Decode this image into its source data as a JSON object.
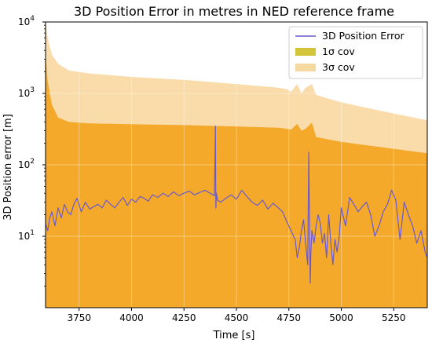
{
  "chart_data": {
    "type": "area",
    "title": "3D Position Error in metres in NED reference frame",
    "xlabel": "Time [s]",
    "ylabel": "3D Position error [m]",
    "xlim": [
      3590,
      5410
    ],
    "ylim": [
      1,
      10000
    ],
    "yscale": "log",
    "grid": true,
    "legend_position": "top-right",
    "x_ticks": [
      3750,
      4000,
      4250,
      4500,
      4750,
      5000,
      5250
    ],
    "x_tick_labels": [
      "3750",
      "4000",
      "4250",
      "4500",
      "4750",
      "5000",
      "5250"
    ],
    "y_ticks": [
      10,
      100,
      1000,
      10000
    ],
    "y_tick_labels": [
      [
        "10",
        "1"
      ],
      [
        "10",
        "2"
      ],
      [
        "10",
        "3"
      ],
      [
        "10",
        "4"
      ]
    ],
    "legend": [
      {
        "label": "3D Position Error",
        "kind": "line",
        "color": "#6a5acd"
      },
      {
        "label": "1σ cov",
        "kind": "patch",
        "color": "#d4c43a"
      },
      {
        "label": "3σ cov",
        "kind": "patch",
        "color": "#f6d9a0"
      }
    ],
    "colors": {
      "error_line": "#6a5acd",
      "sigma1_fill": "#f5a92a",
      "sigma3_fill": "#f9dcaa",
      "grid": "#d8d8d8"
    },
    "series": [
      {
        "name": "3σ cov",
        "x": [
          3590,
          3600,
          3620,
          3650,
          3700,
          3800,
          4000,
          4250,
          4500,
          4700,
          4740,
          4760,
          4790,
          4810,
          4830,
          4860,
          4880,
          5000,
          5200,
          5410
        ],
        "y": [
          10000,
          6000,
          3500,
          2600,
          2100,
          1900,
          1700,
          1550,
          1350,
          1200,
          1150,
          1050,
          1350,
          1000,
          1200,
          1350,
          950,
          750,
          560,
          420
        ]
      },
      {
        "name": "1σ cov",
        "x": [
          3590,
          3600,
          3620,
          3650,
          3700,
          3800,
          4000,
          4250,
          4500,
          4700,
          4740,
          4760,
          4790,
          4810,
          4830,
          4860,
          4880,
          5000,
          5200,
          5410
        ],
        "y": [
          3500,
          1500,
          700,
          460,
          400,
          380,
          370,
          360,
          345,
          330,
          320,
          310,
          375,
          300,
          320,
          390,
          245,
          210,
          175,
          145
        ]
      },
      {
        "name": "3D Position Error",
        "x": [
          3590,
          3600,
          3610,
          3620,
          3635,
          3650,
          3665,
          3680,
          3695,
          3710,
          3725,
          3740,
          3760,
          3780,
          3800,
          3820,
          3840,
          3860,
          3880,
          3900,
          3920,
          3940,
          3960,
          3980,
          4000,
          4020,
          4040,
          4060,
          4080,
          4100,
          4125,
          4150,
          4175,
          4200,
          4225,
          4250,
          4275,
          4300,
          4325,
          4350,
          4375,
          4395,
          4400,
          4402,
          4405,
          4410,
          4425,
          4450,
          4475,
          4500,
          4525,
          4550,
          4575,
          4600,
          4625,
          4650,
          4675,
          4700,
          4720,
          4740,
          4760,
          4780,
          4790,
          4800,
          4810,
          4820,
          4830,
          4840,
          4845,
          4850,
          4852,
          4855,
          4860,
          4870,
          4880,
          4890,
          4900,
          4910,
          4920,
          4930,
          4940,
          4950,
          4960,
          4970,
          4980,
          4990,
          5000,
          5020,
          5040,
          5060,
          5080,
          5100,
          5120,
          5140,
          5160,
          5180,
          5200,
          5220,
          5240,
          5260,
          5280,
          5300,
          5320,
          5340,
          5360,
          5380,
          5400,
          5410
        ],
        "y": [
          15,
          12,
          18,
          22,
          14,
          25,
          18,
          28,
          22,
          20,
          28,
          34,
          22,
          30,
          24,
          26,
          28,
          25,
          32,
          28,
          25,
          30,
          35,
          27,
          33,
          30,
          36,
          34,
          31,
          38,
          35,
          40,
          36,
          42,
          37,
          40,
          43,
          38,
          41,
          44,
          40,
          37,
          350,
          25,
          40,
          32,
          30,
          34,
          38,
          33,
          44,
          36,
          30,
          27,
          32,
          24,
          29,
          25,
          22,
          16,
          12,
          9,
          5,
          7,
          12,
          17,
          8,
          4,
          150,
          5,
          2.2,
          6,
          12,
          8,
          14,
          20,
          15,
          8,
          11,
          5,
          20,
          8,
          4,
          9,
          6,
          10,
          25,
          14,
          35,
          28,
          22,
          26,
          30,
          20,
          10,
          14,
          22,
          28,
          44,
          32,
          9,
          30,
          20,
          14,
          8,
          12,
          6,
          5
        ]
      }
    ]
  }
}
